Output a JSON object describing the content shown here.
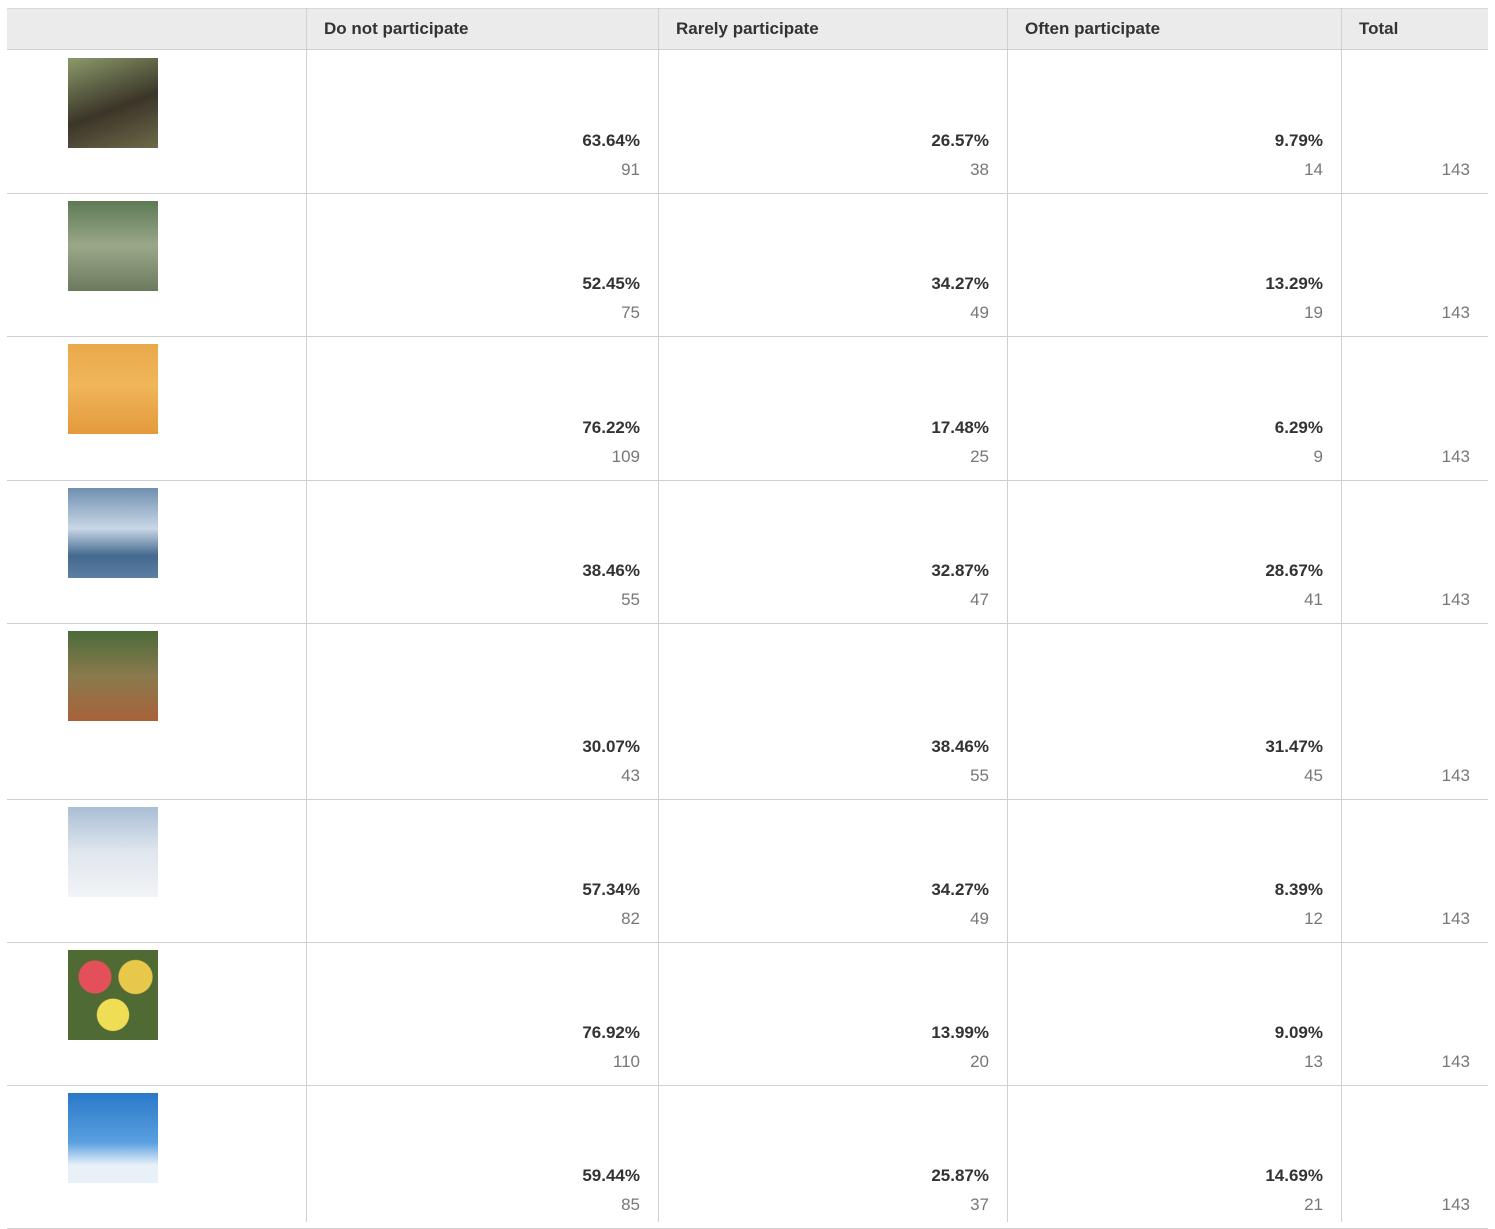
{
  "table": {
    "headers": [
      "Do not participate",
      "Rarely participate",
      "Often participate",
      "Total"
    ],
    "rows": [
      {
        "cells": [
          {
            "percent": "63.64%",
            "count": 91
          },
          {
            "percent": "26.57%",
            "count": 38
          },
          {
            "percent": "9.79%",
            "count": 14
          }
        ],
        "total": 143
      },
      {
        "cells": [
          {
            "percent": "52.45%",
            "count": 75
          },
          {
            "percent": "34.27%",
            "count": 49
          },
          {
            "percent": "13.29%",
            "count": 19
          }
        ],
        "total": 143
      },
      {
        "cells": [
          {
            "percent": "76.22%",
            "count": 109
          },
          {
            "percent": "17.48%",
            "count": 25
          },
          {
            "percent": "6.29%",
            "count": 9
          }
        ],
        "total": 143
      },
      {
        "cells": [
          {
            "percent": "38.46%",
            "count": 55
          },
          {
            "percent": "32.87%",
            "count": 47
          },
          {
            "percent": "28.67%",
            "count": 41
          }
        ],
        "total": 143
      },
      {
        "cells": [
          {
            "percent": "30.07%",
            "count": 43
          },
          {
            "percent": "38.46%",
            "count": 55
          },
          {
            "percent": "31.47%",
            "count": 45
          }
        ],
        "total": 143
      },
      {
        "cells": [
          {
            "percent": "57.34%",
            "count": 82
          },
          {
            "percent": "34.27%",
            "count": 49
          },
          {
            "percent": "8.39%",
            "count": 12
          }
        ],
        "total": 143
      },
      {
        "cells": [
          {
            "percent": "76.92%",
            "count": 110
          },
          {
            "percent": "13.99%",
            "count": 20
          },
          {
            "percent": "9.09%",
            "count": 13
          }
        ],
        "total": 143
      },
      {
        "cells": [
          {
            "percent": "59.44%",
            "count": 85
          },
          {
            "percent": "25.87%",
            "count": 37
          },
          {
            "percent": "14.69%",
            "count": 21
          }
        ],
        "total": 143
      }
    ]
  }
}
